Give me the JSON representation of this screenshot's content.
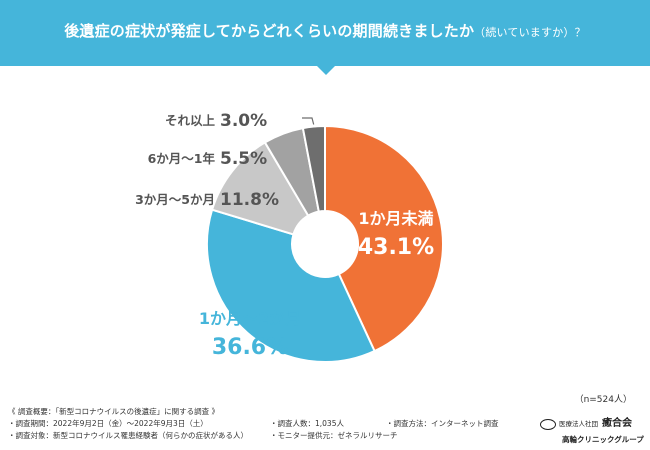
{
  "header": {
    "title": "後遺症の症状が発症してからどれくらいの期間続きましたか",
    "subtitle": "（続いていますか）？"
  },
  "chart_data": {
    "type": "pie",
    "donut": true,
    "slices": [
      {
        "label": "1か月未満",
        "value": 43.1,
        "display": "43.1%",
        "color": "#f07236"
      },
      {
        "label": "1か月〜2か月",
        "value": 36.6,
        "display": "36.6%",
        "color": "#45b5da"
      },
      {
        "label": "3か月〜5か月",
        "value": 11.8,
        "display": "11.8%",
        "color": "#c8c8c8"
      },
      {
        "label": "6か月〜1年",
        "value": 5.5,
        "display": "5.5%",
        "color": "#a2a2a2"
      },
      {
        "label": "それ以上",
        "value": 3.0,
        "display": "3.0%",
        "color": "#6e6e6e"
      }
    ],
    "sample": "（n=524人）"
  },
  "footer": {
    "overview": "《 調査概要：「新型コロナウイルスの後遺症」に関する調査 》",
    "period": "・調査期間：2022年9月2日（金）〜2022年9月3日（土）",
    "count": "・調査人数：1,035人",
    "method": "・調査方法：インターネット調査",
    "target": "・調査対象：新型コロナウイルス罹患経験者（何らかの症状がある人）",
    "provider": "・モニター提供元：ゼネラルリサーチ"
  },
  "logo": {
    "org": "医療法人社団",
    "name": "癒合会",
    "clinic": "高輪クリニックグループ"
  }
}
